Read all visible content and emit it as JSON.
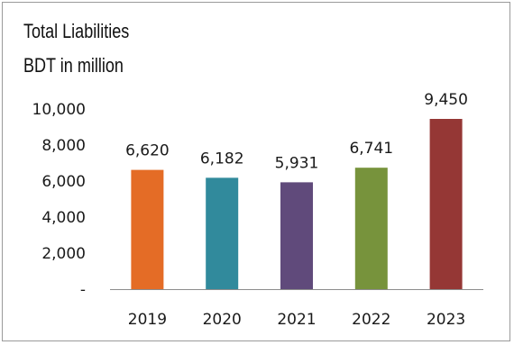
{
  "chart_data": {
    "type": "bar",
    "title": "Total Liabilities",
    "subtitle": "BDT in million",
    "categories": [
      "2019",
      "2020",
      "2021",
      "2022",
      "2023"
    ],
    "values": [
      6620,
      6182,
      5931,
      6741,
      9450
    ],
    "value_labels": [
      "6,620",
      "6,182",
      "5,931",
      "6,741",
      "9,450"
    ],
    "colors": [
      "#e46c26",
      "#318a9c",
      "#604a7b",
      "#77933c",
      "#953735"
    ],
    "ylim": [
      0,
      10000
    ],
    "yticks": [
      0,
      2000,
      4000,
      6000,
      8000,
      10000
    ],
    "ytick_labels": [
      "-",
      "2,000",
      "4,000",
      "6,000",
      "8,000",
      "10,000"
    ],
    "xlabel": "",
    "ylabel": "",
    "grid": false,
    "legend": "none"
  }
}
